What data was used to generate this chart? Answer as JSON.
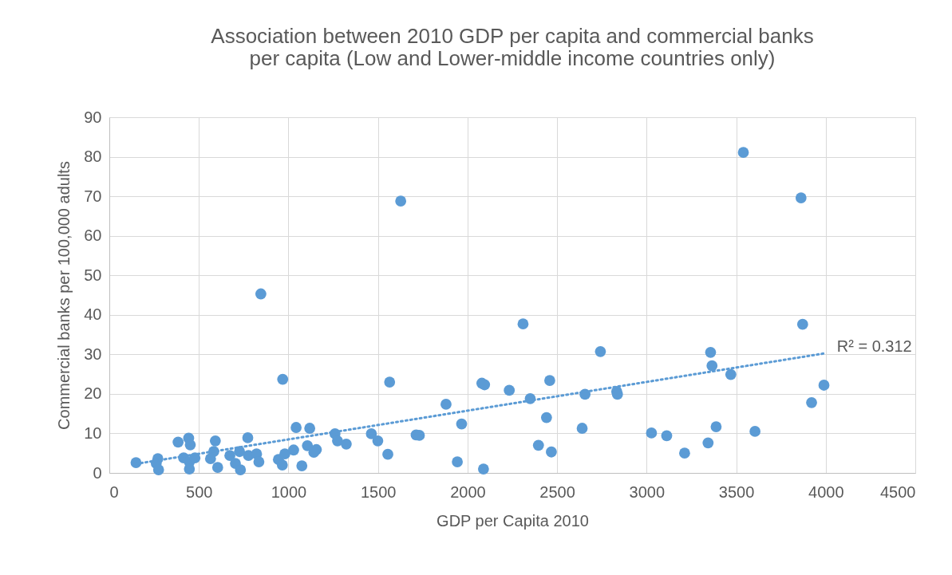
{
  "chart_data": {
    "type": "scatter",
    "title": "Association between 2010 GDP per capita and commercial banks per capita (Low and Lower-middle income countries only)",
    "xlabel": "GDP per Capita 2010",
    "ylabel": "Commercial banks per 100,000 adults",
    "xlim": [
      0,
      4500
    ],
    "xticks": [
      0,
      500,
      1000,
      1500,
      2000,
      2500,
      3000,
      3500,
      4000,
      4500
    ],
    "ylim": [
      0,
      90
    ],
    "yticks": [
      0,
      10,
      20,
      30,
      40,
      50,
      60,
      70,
      80,
      90
    ],
    "grid": true,
    "marker": "circle",
    "series": [
      {
        "color": "#5b9bd5",
        "x": [
          149,
          271,
          262,
          275,
          384,
          443,
          452,
          415,
          447,
          478,
          447,
          592,
          583,
          565,
          605,
          673,
          704,
          732,
          727,
          773,
          777,
          822,
          835,
          944,
          966,
          980,
          1029,
          1075,
          1043,
          1119,
          1106,
          1156,
          1142,
          1260,
          1274,
          1323,
          1463,
          1499,
          846,
          968,
          1565,
          1555,
          1627,
          1713,
          1731,
          1880,
          1943,
          1967,
          2080,
          2095,
          2089,
          2233,
          2310,
          2350,
          2396,
          2441,
          2459,
          2468,
          2640,
          2656,
          2742,
          2833,
          2837,
          3027,
          3112,
          3212,
          3343,
          3388,
          3357,
          3365,
          3470,
          3605,
          3871,
          3921,
          3990,
          3540,
          3862
        ],
        "values": [
          2.6,
          3.6,
          2.4,
          0.8,
          7.8,
          8.8,
          7.1,
          3.8,
          2.8,
          3.8,
          1.0,
          8.1,
          5.4,
          3.6,
          1.4,
          4.4,
          2.4,
          0.8,
          5.4,
          8.9,
          4.4,
          4.8,
          2.8,
          3.4,
          2.0,
          4.8,
          5.8,
          1.8,
          11.5,
          11.3,
          6.9,
          5.9,
          5.2,
          9.9,
          8.1,
          7.3,
          9.9,
          8.1,
          45.3,
          23.7,
          23.0,
          4.7,
          68.8,
          9.6,
          9.5,
          17.4,
          2.8,
          12.4,
          22.7,
          22.3,
          1.0,
          20.9,
          37.7,
          18.8,
          7.0,
          14.0,
          23.4,
          5.3,
          11.3,
          19.9,
          30.7,
          20.6,
          19.9,
          10.1,
          9.4,
          5.0,
          7.6,
          11.7,
          30.5,
          27.1,
          24.9,
          10.5,
          37.6,
          17.8,
          22.2,
          81.1,
          69.6
        ]
      },
      {
        "type": "line",
        "color": "#5b9bd5",
        "line_style": "dotted",
        "marker": "none",
        "x": [
          150,
          4000
        ],
        "values": [
          2.3,
          30.3
        ]
      }
    ],
    "annotations": [
      {
        "text": "R² = 0.312",
        "x": 4000,
        "y": 30.3
      }
    ]
  }
}
